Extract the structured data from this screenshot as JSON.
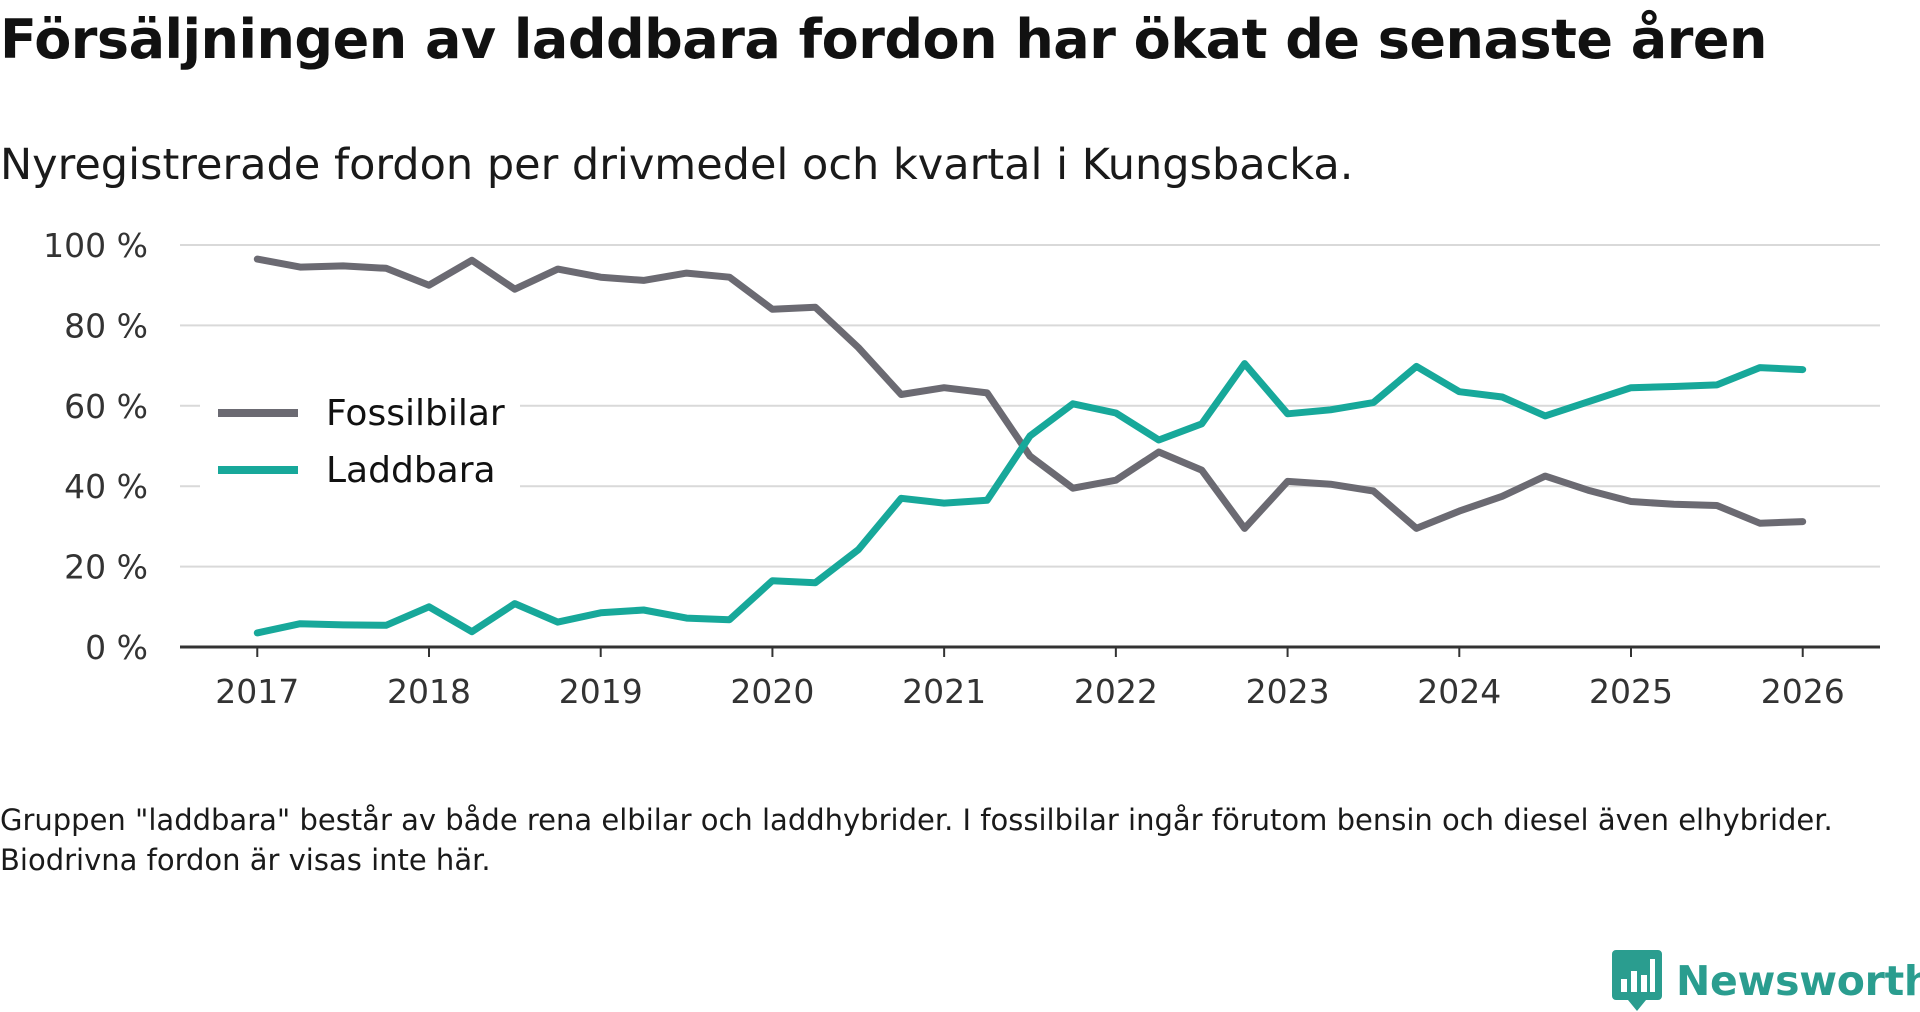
{
  "title": "Försäljningen av laddbara fordon har ökat de senaste åren",
  "subtitle": "Nyregistrerade fordon per drivmedel och kvartal i Kungsbacka.",
  "note": "Gruppen \"laddbara\" består av både rena elbilar och laddhybrider. I fossilbilar ingår förutom bensin och diesel även elhybrider. Biodrivna fordon är visas inte här.",
  "brand": {
    "name": "Newsworthy",
    "icon": "newsworthy-logo-icon",
    "color": "#2a9d8f"
  },
  "chart_data": {
    "type": "line",
    "title": "Försäljningen av laddbara fordon har ökat de senaste åren",
    "subtitle": "Nyregistrerade fordon per drivmedel och kvartal i Kungsbacka.",
    "xlabel": "",
    "ylabel": "",
    "x": [
      2017.0,
      2017.25,
      2017.5,
      2017.75,
      2018.0,
      2018.25,
      2018.5,
      2018.75,
      2019.0,
      2019.25,
      2019.5,
      2019.75,
      2020.0,
      2020.25,
      2020.5,
      2020.75,
      2021.0,
      2021.25,
      2021.5,
      2021.75,
      2022.0,
      2022.25,
      2022.5,
      2022.75,
      2023.0,
      2023.25,
      2023.5,
      2023.75,
      2024.0,
      2024.25,
      2024.5,
      2024.75,
      2025.0,
      2025.25,
      2025.5,
      2025.75,
      2026.0
    ],
    "xlim": [
      2016.55,
      2026.45
    ],
    "ylim": [
      0,
      100
    ],
    "x_ticks": [
      2017,
      2018,
      2019,
      2020,
      2021,
      2022,
      2023,
      2024,
      2025,
      2026
    ],
    "x_tick_labels": [
      "2017",
      "2018",
      "2019",
      "2020",
      "2021",
      "2022",
      "2023",
      "2024",
      "2025",
      "2026"
    ],
    "y_ticks": [
      0,
      20,
      40,
      60,
      80,
      100
    ],
    "y_tick_labels": [
      "0 %",
      "20 %",
      "40 %",
      "60 %",
      "80 %",
      "100 %"
    ],
    "grid": true,
    "legend_position": "center-left",
    "series": [
      {
        "name": "Fossilbilar",
        "color": "#6b6a72",
        "values": [
          96.5,
          94.5,
          94.8,
          94.2,
          90,
          96.2,
          89,
          94,
          92,
          91.2,
          93,
          92,
          84,
          84.5,
          74.5,
          62.8,
          64.5,
          63.2,
          47.5,
          39.5,
          41.5,
          48.5,
          44,
          29.5,
          41.2,
          40.5,
          38.8,
          29.5,
          33.8,
          37.5,
          42.5,
          39,
          36.2,
          35.5,
          35.2,
          30.8,
          31.2
        ]
      },
      {
        "name": "Laddbara",
        "color": "#17a89a",
        "values": [
          3.5,
          5.8,
          5.5,
          5.4,
          10,
          3.8,
          10.8,
          6.2,
          8.5,
          9.2,
          7.2,
          6.8,
          16.5,
          16,
          24.2,
          37,
          35.8,
          36.5,
          52.5,
          60.5,
          58.2,
          51.5,
          55.5,
          70.5,
          58,
          59,
          60.8,
          69.8,
          63.5,
          62.2,
          57.5,
          61,
          64.5,
          64.8,
          65.2,
          69.5,
          69
        ]
      }
    ]
  }
}
